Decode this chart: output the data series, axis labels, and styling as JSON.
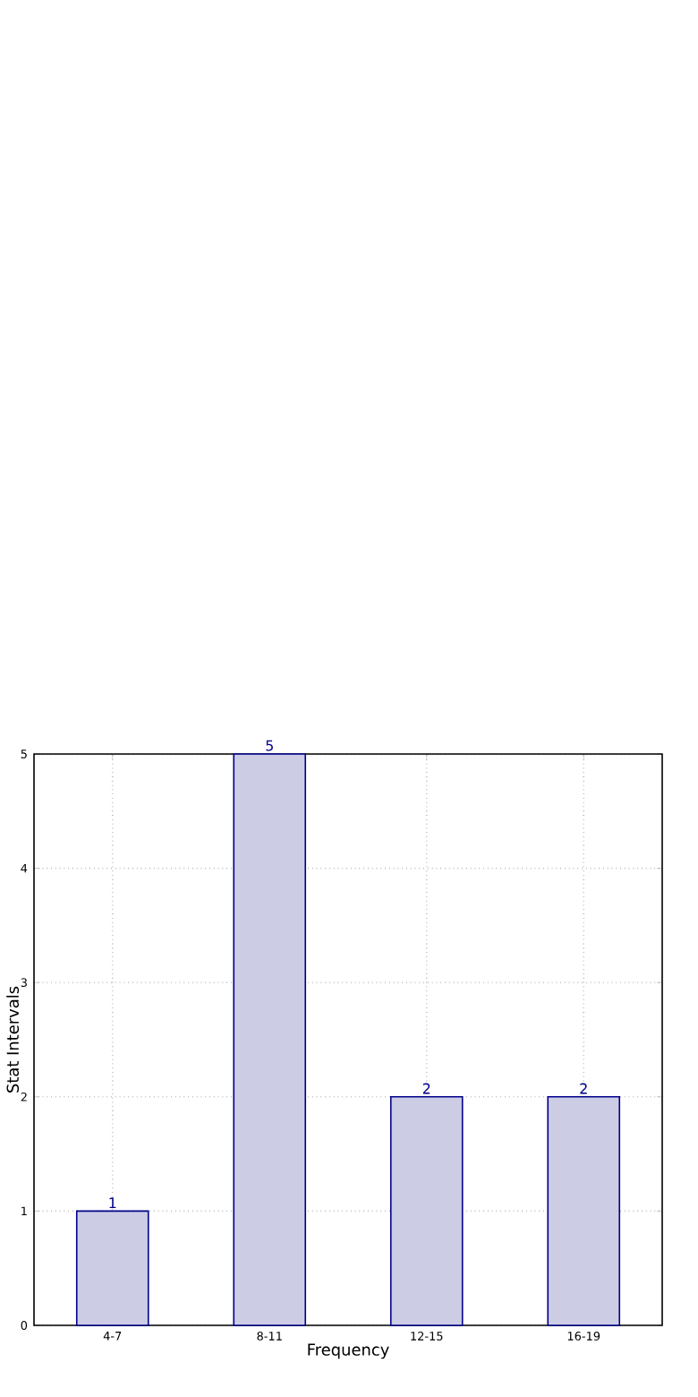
{
  "chart_data": {
    "type": "bar",
    "xlabel": "Frequency",
    "ylabel": "Stat Intervals",
    "categories": [
      "4-7",
      "8-11",
      "12-15",
      "16-19"
    ],
    "values": [
      1,
      5,
      2,
      2
    ],
    "color": "#ccccE5",
    "ylim": [
      0,
      5
    ],
    "yticks": [
      0,
      1,
      2,
      3,
      4,
      5
    ],
    "grid": true,
    "data_labels": true
  }
}
